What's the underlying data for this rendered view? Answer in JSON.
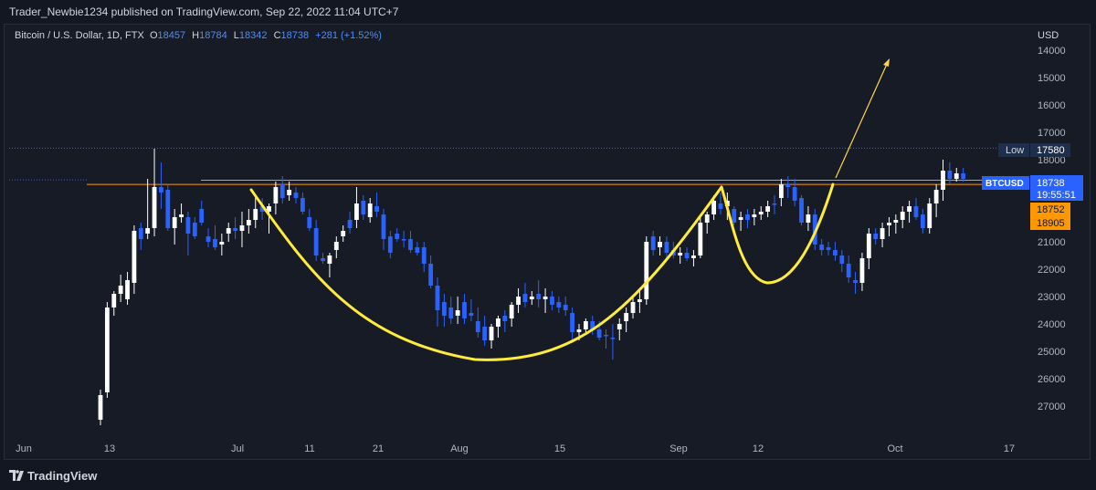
{
  "header": {
    "published_by": "Trader_Newbie1234 published on TradingView.com, Sep 22, 2022 11:04 UTC+7"
  },
  "symbol": {
    "name": "Bitcoin / U.S. Dollar, 1D, FTX",
    "open_label": "O",
    "open": "18457",
    "high_label": "H",
    "high": "18784",
    "low_label": "L",
    "low": "18342",
    "close_label": "C",
    "close": "18738",
    "change": "+281 (+1.52%)"
  },
  "price_axis": {
    "unit": "USD",
    "ticks": [
      "14000",
      "15000",
      "16000",
      "17000",
      "18000",
      "19000",
      "20000",
      "21000",
      "22000",
      "23000",
      "24000",
      "25000",
      "26000",
      "27000"
    ]
  },
  "time_axis": {
    "ticks": [
      "Jun",
      "13",
      "Jul",
      "11",
      "21",
      "Aug",
      "15",
      "Sep",
      "12",
      "Oct",
      "17"
    ]
  },
  "labels": {
    "low_tag": "Low",
    "low_value": "17580",
    "symbol_tag": "BTCUSD",
    "last_price": "18738",
    "countdown": "19:55:51",
    "level_1": "18752",
    "level_2": "18905"
  },
  "footer": {
    "brand": "TradingView"
  },
  "colors": {
    "up": "#ffffff",
    "down": "#2962ff",
    "horizontal_line": "#ff9800",
    "curve": "#ffeb3b",
    "arrow": "#ffd54f"
  },
  "chart_data": {
    "type": "candlestick",
    "title": "Bitcoin / U.S. Dollar, 1D, FTX",
    "ylabel": "USD",
    "y_axis": "inverted (higher values drawn lower)",
    "ylim": [
      13400,
      27600
    ],
    "grid": false,
    "levels": [
      {
        "name": "Low",
        "value": 17580,
        "style": "dotted"
      },
      {
        "value": 18752,
        "style": "solid"
      },
      {
        "value": 18905,
        "style": "solid"
      }
    ],
    "candles": [
      {
        "date": "2022-06-10",
        "o": 27500,
        "h": 27700,
        "l": 26400,
        "c": 26600
      },
      {
        "date": "2022-06-11",
        "o": 26500,
        "h": 26700,
        "l": 23200,
        "c": 23400
      },
      {
        "date": "2022-06-12",
        "o": 23400,
        "h": 23700,
        "l": 22800,
        "c": 22900
      },
      {
        "date": "2022-06-13",
        "o": 22900,
        "h": 23200,
        "l": 22200,
        "c": 22600
      },
      {
        "date": "2022-06-14",
        "o": 23100,
        "h": 23300,
        "l": 22100,
        "c": 22400
      },
      {
        "date": "2022-06-15",
        "o": 22500,
        "h": 22900,
        "l": 20400,
        "c": 20600
      },
      {
        "date": "2022-06-16",
        "o": 20500,
        "h": 21300,
        "l": 20300,
        "c": 20900
      },
      {
        "date": "2022-06-17",
        "o": 20700,
        "h": 20900,
        "l": 18700,
        "c": 20500
      },
      {
        "date": "2022-06-18",
        "o": 20500,
        "h": 20800,
        "l": 17600,
        "c": 19000
      },
      {
        "date": "2022-06-19",
        "o": 19000,
        "h": 19800,
        "l": 18100,
        "c": 19200
      },
      {
        "date": "2022-06-20",
        "o": 19100,
        "h": 20600,
        "l": 18900,
        "c": 20500
      },
      {
        "date": "2022-06-21",
        "o": 20500,
        "h": 21100,
        "l": 19800,
        "c": 20100
      },
      {
        "date": "2022-06-22",
        "o": 20100,
        "h": 20300,
        "l": 19600,
        "c": 20000
      },
      {
        "date": "2022-06-23",
        "o": 20100,
        "h": 21500,
        "l": 19900,
        "c": 20700
      },
      {
        "date": "2022-06-24",
        "o": 20300,
        "h": 20900,
        "l": 20100,
        "c": 20800
      },
      {
        "date": "2022-06-25",
        "o": 19800,
        "h": 20400,
        "l": 19500,
        "c": 20300
      },
      {
        "date": "2022-06-26",
        "o": 20800,
        "h": 21200,
        "l": 20500,
        "c": 21000
      },
      {
        "date": "2022-06-27",
        "o": 20900,
        "h": 21300,
        "l": 20400,
        "c": 21200
      },
      {
        "date": "2022-06-28",
        "o": 21100,
        "h": 21500,
        "l": 20700,
        "c": 21000
      },
      {
        "date": "2022-06-29",
        "o": 20700,
        "h": 21000,
        "l": 20300,
        "c": 20500
      },
      {
        "date": "2022-06-30",
        "o": 20500,
        "h": 20900,
        "l": 20100,
        "c": 20600
      },
      {
        "date": "2022-07-01",
        "o": 20600,
        "h": 21200,
        "l": 19900,
        "c": 20400
      },
      {
        "date": "2022-07-02",
        "o": 20400,
        "h": 20700,
        "l": 19800,
        "c": 20200
      },
      {
        "date": "2022-07-03",
        "o": 20200,
        "h": 20500,
        "l": 19300,
        "c": 19800
      },
      {
        "date": "2022-07-04",
        "o": 19700,
        "h": 20200,
        "l": 19400,
        "c": 19900
      },
      {
        "date": "2022-07-05",
        "o": 19900,
        "h": 20700,
        "l": 19600,
        "c": 19700
      },
      {
        "date": "2022-07-06",
        "o": 19600,
        "h": 20000,
        "l": 18800,
        "c": 19000
      },
      {
        "date": "2022-07-07",
        "o": 18900,
        "h": 19600,
        "l": 18600,
        "c": 19400
      },
      {
        "date": "2022-07-08",
        "o": 19300,
        "h": 19500,
        "l": 18800,
        "c": 19100
      },
      {
        "date": "2022-07-09",
        "o": 19200,
        "h": 19600,
        "l": 19000,
        "c": 19400
      },
      {
        "date": "2022-07-10",
        "o": 19400,
        "h": 20000,
        "l": 19200,
        "c": 19900
      },
      {
        "date": "2022-07-11",
        "o": 20100,
        "h": 20600,
        "l": 19800,
        "c": 20500
      },
      {
        "date": "2022-07-12",
        "o": 20500,
        "h": 21700,
        "l": 20200,
        "c": 21500
      },
      {
        "date": "2022-07-13",
        "o": 21600,
        "h": 21800,
        "l": 21400,
        "c": 21700
      },
      {
        "date": "2022-07-14",
        "o": 21800,
        "h": 22300,
        "l": 21400,
        "c": 21500
      },
      {
        "date": "2022-07-15",
        "o": 21300,
        "h": 21600,
        "l": 20800,
        "c": 21000
      },
      {
        "date": "2022-07-16",
        "o": 20800,
        "h": 21000,
        "l": 20400,
        "c": 20600
      },
      {
        "date": "2022-07-17",
        "o": 20200,
        "h": 20700,
        "l": 19900,
        "c": 20500
      },
      {
        "date": "2022-07-18",
        "o": 20200,
        "h": 20500,
        "l": 19000,
        "c": 19600
      },
      {
        "date": "2022-07-19",
        "o": 19500,
        "h": 20200,
        "l": 19300,
        "c": 20000
      },
      {
        "date": "2022-07-20",
        "o": 20100,
        "h": 20300,
        "l": 19400,
        "c": 19600
      },
      {
        "date": "2022-07-21",
        "o": 19700,
        "h": 20100,
        "l": 19200,
        "c": 19900
      },
      {
        "date": "2022-07-22",
        "o": 20000,
        "h": 21300,
        "l": 19800,
        "c": 20900
      },
      {
        "date": "2022-07-23",
        "o": 20800,
        "h": 21600,
        "l": 20600,
        "c": 21400
      },
      {
        "date": "2022-07-24",
        "o": 20700,
        "h": 21000,
        "l": 20500,
        "c": 20900
      },
      {
        "date": "2022-07-25",
        "o": 20900,
        "h": 21200,
        "l": 20600,
        "c": 20900
      },
      {
        "date": "2022-07-26",
        "o": 20900,
        "h": 21400,
        "l": 20600,
        "c": 21300
      },
      {
        "date": "2022-07-27",
        "o": 21200,
        "h": 21500,
        "l": 21000,
        "c": 21400
      },
      {
        "date": "2022-07-28",
        "o": 21200,
        "h": 22100,
        "l": 21000,
        "c": 21800
      },
      {
        "date": "2022-07-29",
        "o": 21800,
        "h": 22700,
        "l": 21500,
        "c": 22600
      },
      {
        "date": "2022-07-30",
        "o": 22600,
        "h": 24100,
        "l": 22300,
        "c": 23500
      },
      {
        "date": "2022-07-31",
        "o": 23200,
        "h": 24100,
        "l": 22900,
        "c": 23700
      },
      {
        "date": "2022-08-01",
        "o": 23400,
        "h": 24000,
        "l": 23000,
        "c": 23800
      },
      {
        "date": "2022-08-02",
        "o": 23700,
        "h": 24000,
        "l": 23000,
        "c": 23500
      },
      {
        "date": "2022-08-03",
        "o": 23200,
        "h": 24000,
        "l": 22900,
        "c": 23800
      },
      {
        "date": "2022-08-04",
        "o": 23600,
        "h": 23900,
        "l": 23100,
        "c": 23700
      },
      {
        "date": "2022-08-05",
        "o": 23900,
        "h": 24500,
        "l": 23400,
        "c": 24300
      },
      {
        "date": "2022-08-06",
        "o": 24100,
        "h": 24800,
        "l": 23700,
        "c": 24600
      },
      {
        "date": "2022-08-07",
        "o": 24600,
        "h": 24900,
        "l": 24000,
        "c": 24100
      },
      {
        "date": "2022-08-08",
        "o": 24100,
        "h": 24500,
        "l": 23700,
        "c": 23800
      },
      {
        "date": "2022-08-09",
        "o": 23700,
        "h": 24300,
        "l": 23500,
        "c": 23900
      },
      {
        "date": "2022-08-10",
        "o": 23800,
        "h": 24100,
        "l": 23200,
        "c": 23300
      },
      {
        "date": "2022-08-11",
        "o": 23300,
        "h": 23600,
        "l": 22700,
        "c": 23000
      },
      {
        "date": "2022-08-12",
        "o": 22900,
        "h": 23400,
        "l": 22500,
        "c": 23200
      },
      {
        "date": "2022-08-13",
        "o": 23100,
        "h": 23300,
        "l": 22800,
        "c": 23000
      },
      {
        "date": "2022-08-14",
        "o": 22900,
        "h": 23400,
        "l": 22400,
        "c": 23100
      },
      {
        "date": "2022-08-15",
        "o": 23100,
        "h": 23600,
        "l": 22700,
        "c": 23000
      },
      {
        "date": "2022-08-16",
        "o": 23000,
        "h": 23500,
        "l": 22800,
        "c": 23300
      },
      {
        "date": "2022-08-17",
        "o": 23200,
        "h": 23600,
        "l": 23000,
        "c": 23400
      },
      {
        "date": "2022-08-18",
        "o": 23300,
        "h": 23700,
        "l": 23000,
        "c": 23500
      },
      {
        "date": "2022-08-19",
        "o": 23600,
        "h": 24700,
        "l": 23400,
        "c": 24300
      },
      {
        "date": "2022-08-20",
        "o": 24300,
        "h": 24600,
        "l": 24000,
        "c": 24200
      },
      {
        "date": "2022-08-21",
        "o": 24200,
        "h": 24300,
        "l": 23800,
        "c": 23900
      },
      {
        "date": "2022-08-22",
        "o": 23900,
        "h": 24400,
        "l": 23700,
        "c": 24200
      },
      {
        "date": "2022-08-23",
        "o": 24200,
        "h": 24600,
        "l": 23900,
        "c": 24500
      },
      {
        "date": "2022-08-24",
        "o": 24400,
        "h": 24900,
        "l": 24200,
        "c": 24400
      },
      {
        "date": "2022-08-25",
        "o": 24500,
        "h": 25300,
        "l": 24000,
        "c": 24500
      },
      {
        "date": "2022-08-26",
        "o": 24200,
        "h": 24600,
        "l": 23800,
        "c": 24000
      },
      {
        "date": "2022-08-27",
        "o": 23900,
        "h": 24300,
        "l": 23400,
        "c": 23600
      },
      {
        "date": "2022-08-28",
        "o": 23600,
        "h": 23800,
        "l": 23000,
        "c": 23200
      },
      {
        "date": "2022-08-29",
        "o": 23200,
        "h": 23600,
        "l": 22800,
        "c": 23100
      },
      {
        "date": "2022-08-30",
        "o": 23100,
        "h": 23300,
        "l": 20800,
        "c": 21000
      },
      {
        "date": "2022-08-31",
        "o": 20800,
        "h": 21500,
        "l": 20600,
        "c": 21300
      },
      {
        "date": "2022-09-01",
        "o": 21200,
        "h": 21500,
        "l": 20800,
        "c": 21000
      },
      {
        "date": "2022-09-02",
        "o": 21000,
        "h": 21700,
        "l": 20800,
        "c": 21400
      },
      {
        "date": "2022-09-03",
        "o": 21300,
        "h": 21600,
        "l": 21000,
        "c": 21500
      },
      {
        "date": "2022-09-04",
        "o": 21500,
        "h": 21800,
        "l": 21200,
        "c": 21400
      },
      {
        "date": "2022-09-05",
        "o": 21400,
        "h": 21700,
        "l": 21200,
        "c": 21600
      },
      {
        "date": "2022-09-06",
        "o": 21600,
        "h": 21900,
        "l": 21300,
        "c": 21500
      },
      {
        "date": "2022-09-07",
        "o": 21500,
        "h": 21600,
        "l": 20100,
        "c": 20300
      },
      {
        "date": "2022-09-08",
        "o": 20300,
        "h": 20700,
        "l": 19900,
        "c": 20000
      },
      {
        "date": "2022-09-09",
        "o": 20000,
        "h": 20200,
        "l": 19300,
        "c": 19500
      },
      {
        "date": "2022-09-10",
        "o": 19600,
        "h": 20000,
        "l": 19200,
        "c": 19800
      },
      {
        "date": "2022-09-11",
        "o": 19700,
        "h": 20200,
        "l": 19200,
        "c": 19500
      },
      {
        "date": "2022-09-12",
        "o": 19800,
        "h": 20400,
        "l": 19700,
        "c": 20300
      },
      {
        "date": "2022-09-13",
        "o": 20200,
        "h": 20600,
        "l": 19900,
        "c": 20100
      },
      {
        "date": "2022-09-14",
        "o": 20000,
        "h": 20500,
        "l": 19800,
        "c": 20200
      },
      {
        "date": "2022-09-15",
        "o": 20100,
        "h": 20400,
        "l": 19800,
        "c": 20000
      },
      {
        "date": "2022-09-16",
        "o": 20000,
        "h": 20200,
        "l": 19700,
        "c": 19900
      },
      {
        "date": "2022-09-17",
        "o": 19900,
        "h": 20100,
        "l": 19500,
        "c": 19700
      },
      {
        "date": "2022-09-18",
        "o": 19600,
        "h": 20000,
        "l": 19300,
        "c": 19600
      },
      {
        "date": "2022-09-19",
        "o": 19400,
        "h": 19700,
        "l": 18700,
        "c": 18900
      },
      {
        "date": "2022-09-20",
        "o": 18900,
        "h": 19400,
        "l": 18600,
        "c": 19000
      },
      {
        "date": "2022-09-21",
        "o": 19000,
        "h": 19700,
        "l": 18700,
        "c": 19500
      },
      {
        "date": "2022-09-22",
        "o": 19400,
        "h": 20400,
        "l": 19300,
        "c": 20300
      },
      {
        "date": "2022-09-23",
        "o": 20300,
        "h": 20600,
        "l": 19700,
        "c": 20000
      },
      {
        "date": "2022-09-24",
        "o": 20000,
        "h": 21300,
        "l": 19800,
        "c": 21100
      },
      {
        "date": "2022-09-25",
        "o": 21100,
        "h": 21500,
        "l": 20900,
        "c": 21300
      },
      {
        "date": "2022-09-26",
        "o": 21200,
        "h": 21500,
        "l": 21000,
        "c": 21300
      },
      {
        "date": "2022-09-27",
        "o": 21300,
        "h": 21700,
        "l": 21000,
        "c": 21500
      },
      {
        "date": "2022-09-28",
        "o": 21500,
        "h": 22100,
        "l": 21300,
        "c": 21800
      },
      {
        "date": "2022-09-29",
        "o": 21800,
        "h": 22500,
        "l": 21500,
        "c": 22300
      },
      {
        "date": "2022-09-30",
        "o": 22400,
        "h": 22900,
        "l": 22100,
        "c": 22500
      },
      {
        "date": "2022-10-01",
        "o": 22500,
        "h": 22800,
        "l": 21400,
        "c": 21600
      },
      {
        "date": "2022-10-02",
        "o": 21600,
        "h": 22000,
        "l": 20500,
        "c": 20700
      },
      {
        "date": "2022-10-03",
        "o": 20700,
        "h": 21100,
        "l": 20500,
        "c": 20900
      },
      {
        "date": "2022-10-04",
        "o": 20900,
        "h": 21200,
        "l": 20300,
        "c": 20500
      },
      {
        "date": "2022-10-05",
        "o": 20400,
        "h": 20800,
        "l": 20100,
        "c": 20300
      },
      {
        "date": "2022-10-06",
        "o": 20300,
        "h": 20700,
        "l": 20000,
        "c": 20200
      },
      {
        "date": "2022-10-07",
        "o": 20200,
        "h": 20500,
        "l": 19700,
        "c": 19900
      },
      {
        "date": "2022-10-08",
        "o": 19900,
        "h": 20300,
        "l": 19500,
        "c": 19700
      },
      {
        "date": "2022-10-09",
        "o": 19700,
        "h": 20200,
        "l": 19400,
        "c": 20100
      },
      {
        "date": "2022-10-10",
        "o": 20000,
        "h": 20700,
        "l": 19800,
        "c": 20500
      },
      {
        "date": "2022-10-11",
        "o": 20500,
        "h": 20700,
        "l": 19400,
        "c": 19600
      },
      {
        "date": "2022-10-12",
        "o": 19600,
        "h": 20100,
        "l": 18900,
        "c": 19100
      },
      {
        "date": "2022-10-13",
        "o": 19100,
        "h": 19500,
        "l": 18000,
        "c": 18400
      },
      {
        "date": "2022-10-14",
        "o": 18400,
        "h": 18900,
        "l": 18100,
        "c": 18700
      },
      {
        "date": "2022-10-15",
        "o": 18700,
        "h": 18800,
        "l": 18300,
        "c": 18500
      },
      {
        "date": "2022-10-16",
        "o": 18500,
        "h": 18800,
        "l": 18300,
        "c": 18700
      }
    ]
  }
}
